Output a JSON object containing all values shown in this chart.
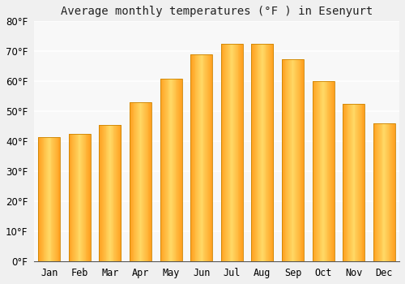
{
  "title": "Average monthly temperatures (°F ) in Esenyurt",
  "months": [
    "Jan",
    "Feb",
    "Mar",
    "Apr",
    "May",
    "Jun",
    "Jul",
    "Aug",
    "Sep",
    "Oct",
    "Nov",
    "Dec"
  ],
  "values": [
    41.5,
    42.5,
    45.5,
    53.0,
    61.0,
    69.0,
    72.5,
    72.5,
    67.5,
    60.0,
    52.5,
    46.0
  ],
  "bar_color": "#FFA500",
  "bar_edge_color": "#CC8400",
  "ylim": [
    0,
    80
  ],
  "ytick_step": 10,
  "background_color": "#f0f0f0",
  "plot_bg_color": "#f8f8f8",
  "grid_color": "#ffffff",
  "title_fontsize": 10,
  "tick_fontsize": 8.5
}
